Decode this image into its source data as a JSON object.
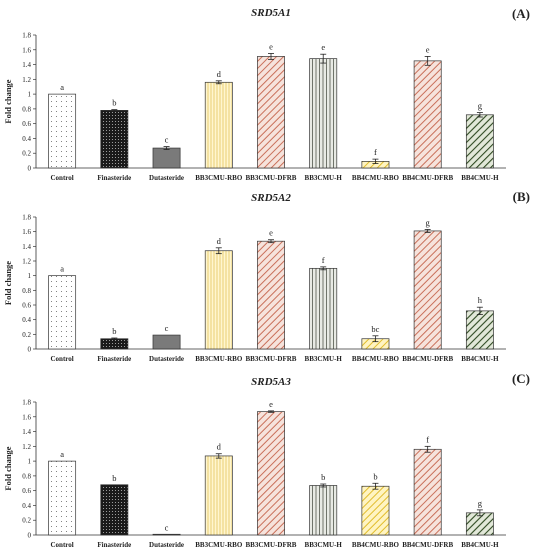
{
  "patterns": {
    "Control": "dots-sparse",
    "Finasteride": "dots-dense",
    "Dutasteride": "solid-gray",
    "BB3CMU-RBO": "vlines-yellow",
    "BB3CMU-DFRB": "diag-red",
    "BB3CMU-H": "vlines-gray",
    "BB4CMU-RBO": "diag-yellow",
    "BB4CMU-DFRB": "diag-red",
    "BB4CMU-H": "diag-green"
  },
  "colors": {
    "Control": "#ffffff",
    "Finasteride": "#222222",
    "Dutasteride": "#777777",
    "BB3CMU-RBO": "#ffe9a0",
    "BB3CMU-DFRB": "#d4836f",
    "BB3CMU-H": "#8a8f86",
    "BB4CMU-RBO": "#f1d24a",
    "BB4CMU-DFRB": "#c8705a",
    "BB4CMU-H": "#3f5a2c"
  },
  "chart_data": [
    {
      "panel": "(A)",
      "type": "bar",
      "title": "SRD5A1",
      "ylabel": "Fold change",
      "ylim": [
        0,
        1.8
      ],
      "yticks": [
        "0",
        "0.2",
        "0.4",
        "0.6",
        "0.8",
        "1",
        "1.2",
        "1.4",
        "1.6",
        "1.8"
      ],
      "categories": [
        "Control",
        "Finasteride",
        "Dutasteride",
        "BB3CMU-RBO",
        "BB3CMU-DFRB",
        "BB3CMU-H",
        "BB4CMU-RBO",
        "BB4CMU-DFRB",
        "BB4CMU-H"
      ],
      "values": [
        1.0,
        0.78,
        0.27,
        1.16,
        1.51,
        1.48,
        0.09,
        1.45,
        0.72
      ],
      "errors": [
        0.0,
        0.01,
        0.02,
        0.02,
        0.04,
        0.06,
        0.03,
        0.06,
        0.03
      ],
      "labels": [
        "a",
        "b",
        "c",
        "d",
        "e",
        "e",
        "f",
        "e",
        "g"
      ]
    },
    {
      "panel": "(B)",
      "type": "bar",
      "title": "SRD5A2",
      "ylabel": "Fold change",
      "ylim": [
        0,
        1.8
      ],
      "yticks": [
        "0",
        "0.2",
        "0.4",
        "0.6",
        "0.8",
        "1",
        "1.2",
        "1.4",
        "1.6",
        "1.8"
      ],
      "categories": [
        "Control",
        "Finasteride",
        "Dutasteride",
        "BB3CMU-RBO",
        "BB3CMU-DFRB",
        "BB3CMU-H",
        "BB4CMU-RBO",
        "BB4CMU-DFRB",
        "BB4CMU-H"
      ],
      "values": [
        1.0,
        0.14,
        0.19,
        1.34,
        1.47,
        1.1,
        0.14,
        1.61,
        0.52
      ],
      "errors": [
        0.0,
        0.01,
        0.0,
        0.04,
        0.02,
        0.02,
        0.04,
        0.02,
        0.05
      ],
      "labels": [
        "a",
        "b",
        "c",
        "d",
        "e",
        "f",
        "bc",
        "g",
        "h"
      ]
    },
    {
      "panel": "(C)",
      "type": "bar",
      "title": "SRD5A3",
      "ylabel": "Fold change",
      "ylim": [
        0,
        1.8
      ],
      "yticks": [
        "0",
        "0.2",
        "0.4",
        "0.6",
        "0.8",
        "1",
        "1.2",
        "1.4",
        "1.6",
        "1.8"
      ],
      "categories": [
        "Control",
        "Finasteride",
        "Dutasteride",
        "BB3CMU-RBO",
        "BB3CMU-DFRB",
        "BB3CMU-H",
        "BB4CMU-RBO",
        "BB4CMU-DFRB",
        "BB4CMU-H"
      ],
      "values": [
        1.0,
        0.68,
        0.01,
        1.07,
        1.67,
        0.67,
        0.66,
        1.16,
        0.3
      ],
      "errors": [
        0.0,
        0.0,
        0.0,
        0.03,
        0.01,
        0.02,
        0.04,
        0.04,
        0.04
      ],
      "labels": [
        "a",
        "b",
        "c",
        "d",
        "e",
        "b",
        "b",
        "f",
        "g"
      ]
    }
  ]
}
